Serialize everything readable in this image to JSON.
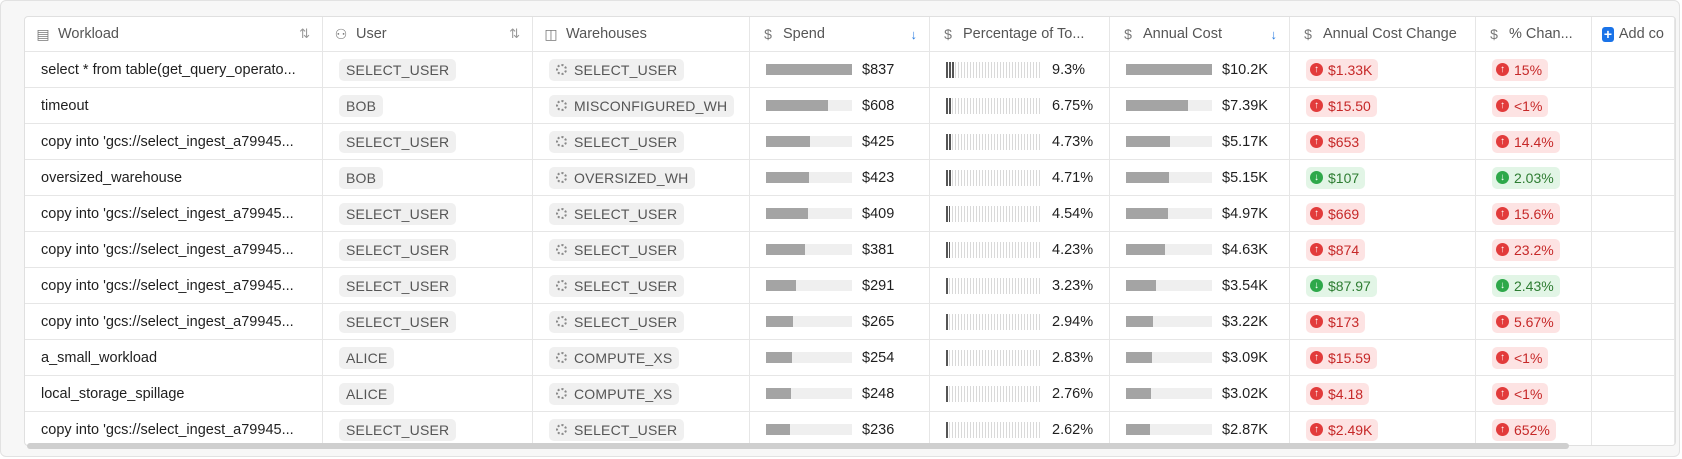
{
  "table": {
    "headers": [
      "Workload",
      "User",
      "Warehouses",
      "Spend",
      "Percentage of To...",
      "Annual Cost",
      "Annual Cost Change",
      "% Chan...",
      "Add co"
    ],
    "rows": [
      {
        "workload": "select * from table(get_query_operato...",
        "user": "SELECT_USER",
        "warehouse": "SELECT_USER",
        "spend": {
          "value": 837,
          "label": "$837"
        },
        "pct": {
          "value": 9.3,
          "label": "9.3%"
        },
        "annual": {
          "value": 10200,
          "label": "$10.2K"
        },
        "change": {
          "label": "$1.33K",
          "direction": "up"
        },
        "pct_change": {
          "label": "15%",
          "direction": "up"
        }
      },
      {
        "workload": "timeout",
        "user": "BOB",
        "warehouse": "MISCONFIGURED_WH",
        "spend": {
          "value": 608,
          "label": "$608"
        },
        "pct": {
          "value": 6.75,
          "label": "6.75%"
        },
        "annual": {
          "value": 7390,
          "label": "$7.39K"
        },
        "change": {
          "label": "$15.50",
          "direction": "up"
        },
        "pct_change": {
          "label": "<1%",
          "direction": "up"
        }
      },
      {
        "workload": "copy into 'gcs://select_ingest_a79945...",
        "user": "SELECT_USER",
        "warehouse": "SELECT_USER",
        "spend": {
          "value": 425,
          "label": "$425"
        },
        "pct": {
          "value": 4.73,
          "label": "4.73%"
        },
        "annual": {
          "value": 5170,
          "label": "$5.17K"
        },
        "change": {
          "label": "$653",
          "direction": "up"
        },
        "pct_change": {
          "label": "14.4%",
          "direction": "up"
        }
      },
      {
        "workload": "oversized_warehouse",
        "user": "BOB",
        "warehouse": "OVERSIZED_WH",
        "spend": {
          "value": 423,
          "label": "$423"
        },
        "pct": {
          "value": 4.71,
          "label": "4.71%"
        },
        "annual": {
          "value": 5150,
          "label": "$5.15K"
        },
        "change": {
          "label": "$107",
          "direction": "down"
        },
        "pct_change": {
          "label": "2.03%",
          "direction": "down"
        }
      },
      {
        "workload": "copy into 'gcs://select_ingest_a79945...",
        "user": "SELECT_USER",
        "warehouse": "SELECT_USER",
        "spend": {
          "value": 409,
          "label": "$409"
        },
        "pct": {
          "value": 4.54,
          "label": "4.54%"
        },
        "annual": {
          "value": 4970,
          "label": "$4.97K"
        },
        "change": {
          "label": "$669",
          "direction": "up"
        },
        "pct_change": {
          "label": "15.6%",
          "direction": "up"
        }
      },
      {
        "workload": "copy into 'gcs://select_ingest_a79945...",
        "user": "SELECT_USER",
        "warehouse": "SELECT_USER",
        "spend": {
          "value": 381,
          "label": "$381"
        },
        "pct": {
          "value": 4.23,
          "label": "4.23%"
        },
        "annual": {
          "value": 4630,
          "label": "$4.63K"
        },
        "change": {
          "label": "$874",
          "direction": "up"
        },
        "pct_change": {
          "label": "23.2%",
          "direction": "up"
        }
      },
      {
        "workload": "copy into 'gcs://select_ingest_a79945...",
        "user": "SELECT_USER",
        "warehouse": "SELECT_USER",
        "spend": {
          "value": 291,
          "label": "$291"
        },
        "pct": {
          "value": 3.23,
          "label": "3.23%"
        },
        "annual": {
          "value": 3540,
          "label": "$3.54K"
        },
        "change": {
          "label": "$87.97",
          "direction": "down"
        },
        "pct_change": {
          "label": "2.43%",
          "direction": "down"
        }
      },
      {
        "workload": "copy into 'gcs://select_ingest_a79945...",
        "user": "SELECT_USER",
        "warehouse": "SELECT_USER",
        "spend": {
          "value": 265,
          "label": "$265"
        },
        "pct": {
          "value": 2.94,
          "label": "2.94%"
        },
        "annual": {
          "value": 3220,
          "label": "$3.22K"
        },
        "change": {
          "label": "$173",
          "direction": "up"
        },
        "pct_change": {
          "label": "5.67%",
          "direction": "up"
        }
      },
      {
        "workload": "a_small_workload",
        "user": "ALICE",
        "warehouse": "COMPUTE_XS",
        "spend": {
          "value": 254,
          "label": "$254"
        },
        "pct": {
          "value": 2.83,
          "label": "2.83%"
        },
        "annual": {
          "value": 3090,
          "label": "$3.09K"
        },
        "change": {
          "label": "$15.59",
          "direction": "up"
        },
        "pct_change": {
          "label": "<1%",
          "direction": "up"
        }
      },
      {
        "workload": "local_storage_spillage",
        "user": "ALICE",
        "warehouse": "COMPUTE_XS",
        "spend": {
          "value": 248,
          "label": "$248"
        },
        "pct": {
          "value": 2.76,
          "label": "2.76%"
        },
        "annual": {
          "value": 3020,
          "label": "$3.02K"
        },
        "change": {
          "label": "$4.18",
          "direction": "up"
        },
        "pct_change": {
          "label": "<1%",
          "direction": "up"
        }
      },
      {
        "workload": "copy into 'gcs://select_ingest_a79945...",
        "user": "SELECT_USER",
        "warehouse": "SELECT_USER",
        "spend": {
          "value": 236,
          "label": "$236"
        },
        "pct": {
          "value": 2.62,
          "label": "2.62%"
        },
        "annual": {
          "value": 2870,
          "label": "$2.87K"
        },
        "change": {
          "label": "$2.49K",
          "direction": "up"
        },
        "pct_change": {
          "label": "652%",
          "direction": "up"
        }
      }
    ]
  }
}
